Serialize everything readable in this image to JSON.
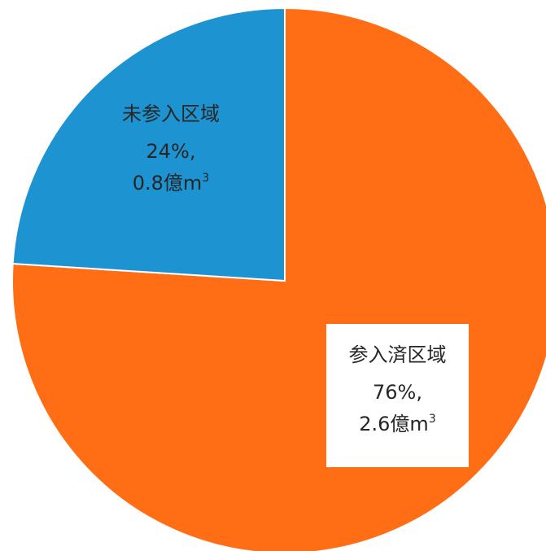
{
  "chart_data": {
    "type": "pie",
    "start_angle_deg": 0,
    "direction": "clockwise",
    "slices": [
      {
        "label": "参入済区域",
        "percent": 76,
        "percent_text": "76%,",
        "volume": 2.6,
        "volume_text": "2.6億m",
        "unit_sup": "3",
        "color": "#FF6D14"
      },
      {
        "label": "未参入区域",
        "percent": 24,
        "percent_text": "24%,",
        "volume": 0.8,
        "volume_text": "0.8億m",
        "unit_sup": "3",
        "color": "#1E93D1"
      }
    ]
  }
}
